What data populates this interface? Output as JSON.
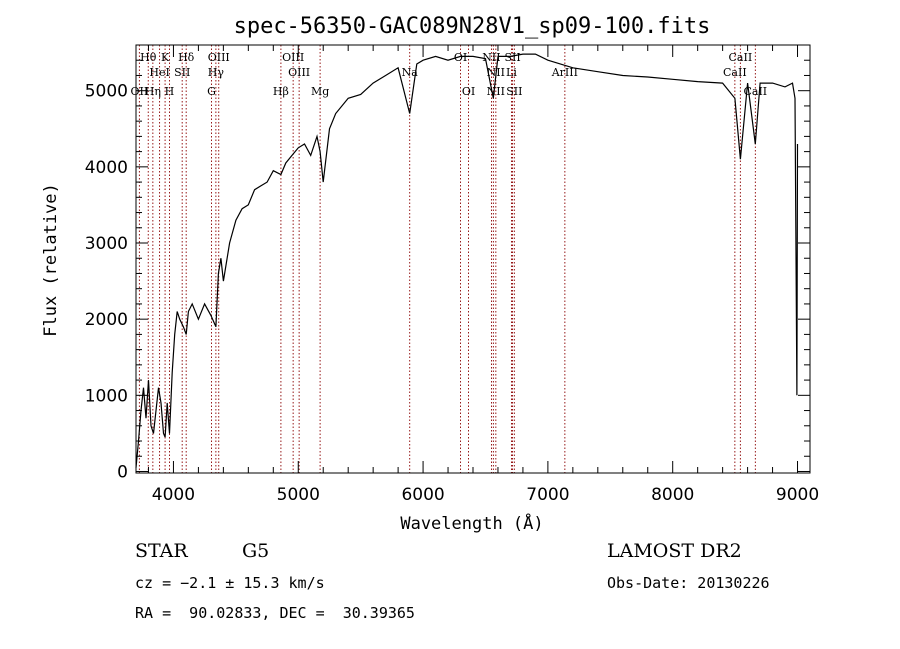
{
  "chart_data": {
    "type": "line",
    "title": "spec-56350-GAC089N28V1_sp09-100.fits",
    "xlabel": "Wavelength (Å)",
    "ylabel": "Flux (relative)",
    "xlim": [
      3700,
      9100
    ],
    "ylim": [
      -20,
      5600
    ],
    "xticks": [
      4000,
      5000,
      6000,
      7000,
      8000,
      9000
    ],
    "yticks": [
      0,
      1000,
      2000,
      3000,
      4000,
      5000
    ],
    "xtick_labels": [
      "4000",
      "5000",
      "6000",
      "7000",
      "8000",
      "9000"
    ],
    "ytick_labels": [
      "0",
      "1000",
      "2000",
      "3000",
      "4000",
      "5000"
    ],
    "grid": false,
    "line_color": "#000000",
    "marker_color": "#8b0000",
    "series": [
      {
        "x": [
          3700,
          3720,
          3740,
          3760,
          3780,
          3800,
          3820,
          3840,
          3860,
          3880,
          3900,
          3920,
          3933,
          3950,
          3968,
          3990,
          4010,
          4030,
          4050,
          4080,
          4102,
          4120,
          4150,
          4200,
          4250,
          4300,
          4340,
          4360,
          4380,
          4400,
          4450,
          4500,
          4550,
          4600,
          4650,
          4700,
          4750,
          4800,
          4861,
          4900,
          4950,
          5000,
          5050,
          5100,
          5150,
          5175,
          5200,
          5250,
          5300,
          5400,
          5500,
          5600,
          5700,
          5800,
          5893,
          5950,
          6000,
          6100,
          6200,
          6300,
          6400,
          6500,
          6563,
          6600,
          6700,
          6800,
          6900,
          7000,
          7200,
          7400,
          7600,
          7800,
          8000,
          8200,
          8400,
          8498,
          8542,
          8600,
          8662,
          8700,
          8800,
          8900,
          8960,
          8980,
          8995,
          9000
        ],
        "y": [
          50,
          400,
          800,
          1100,
          700,
          1200,
          600,
          500,
          800,
          1100,
          900,
          500,
          450,
          900,
          500,
          1300,
          1800,
          2100,
          2000,
          1900,
          1800,
          2100,
          2200,
          2000,
          2200,
          2050,
          1900,
          2600,
          2800,
          2500,
          3000,
          3300,
          3450,
          3500,
          3700,
          3750,
          3800,
          3950,
          3900,
          4050,
          4150,
          4250,
          4300,
          4150,
          4400,
          4200,
          3800,
          4500,
          4700,
          4900,
          4950,
          5100,
          5200,
          5300,
          4700,
          5350,
          5400,
          5450,
          5400,
          5450,
          5450,
          5420,
          4900,
          5450,
          5450,
          5480,
          5480,
          5400,
          5300,
          5250,
          5200,
          5180,
          5150,
          5120,
          5100,
          4900,
          4100,
          5100,
          4300,
          5100,
          5100,
          5050,
          5100,
          4900,
          1000,
          4300
        ]
      }
    ],
    "annotations": [
      {
        "text": "Hθ",
        "x": 3798
      },
      {
        "text": "K",
        "x": 3933
      },
      {
        "text": "Hδ",
        "x": 4102
      },
      {
        "text": "OIII",
        "x": 4363
      },
      {
        "text": "OIII",
        "x": 4959
      },
      {
        "text": "OI",
        "x": 6300
      },
      {
        "text": "NII",
        "x": 6548
      },
      {
        "text": "SII",
        "x": 6717
      },
      {
        "text": "CaII",
        "x": 8542
      },
      {
        "text": "HeI",
        "x": 3889
      },
      {
        "text": "SII",
        "x": 4070
      },
      {
        "text": "Hγ",
        "x": 4340
      },
      {
        "text": "OIII",
        "x": 5007
      },
      {
        "text": "Na",
        "x": 5893
      },
      {
        "text": "NII",
        "x": 6583
      },
      {
        "text": "Li",
        "x": 6708
      },
      {
        "text": "ArIII",
        "x": 7136
      },
      {
        "text": "CaII",
        "x": 8498
      },
      {
        "text": "OII",
        "x": 3727
      },
      {
        "text": "Hη",
        "x": 3835
      },
      {
        "text": "H",
        "x": 3968
      },
      {
        "text": "G",
        "x": 4305
      },
      {
        "text": "Hβ",
        "x": 4861
      },
      {
        "text": "Mg",
        "x": 5175
      },
      {
        "text": "OI",
        "x": 6364
      },
      {
        "text": "NII",
        "x": 6583
      },
      {
        "text": "SII",
        "x": 6731
      },
      {
        "text": "CaII",
        "x": 8662
      }
    ],
    "marker_lines": [
      3727,
      3798,
      3835,
      3889,
      3933,
      3968,
      4070,
      4102,
      4305,
      4340,
      4363,
      4861,
      4959,
      5007,
      5175,
      5893,
      6300,
      6364,
      6548,
      6563,
      6583,
      6708,
      6717,
      6731,
      7136,
      8498,
      8542,
      8662
    ]
  },
  "info": {
    "object_class": "STAR",
    "subclass": "G5",
    "survey": "LAMOST DR2",
    "cz_line": "cz = −2.1 ± 15.3 km/s",
    "obs_date_line": "Obs-Date: 20130226",
    "coords_line": "RA =  90.02833, DEC =  30.39365"
  }
}
